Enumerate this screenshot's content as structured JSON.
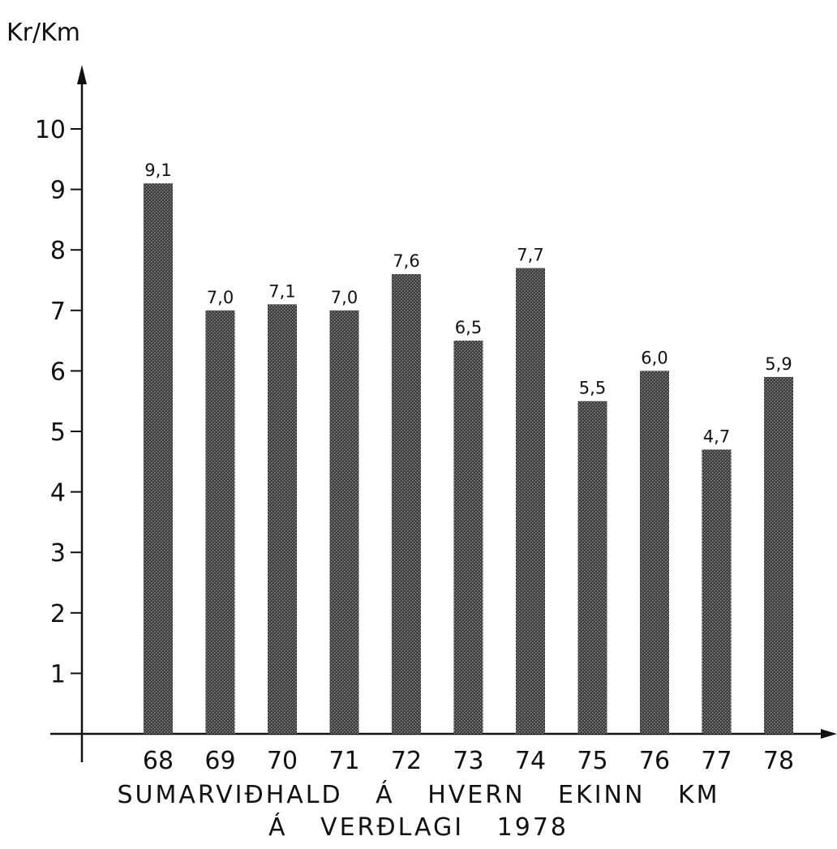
{
  "chart_data": {
    "type": "bar",
    "unit_label": "Kr/Km",
    "categories": [
      "68",
      "69",
      "70",
      "71",
      "72",
      "73",
      "74",
      "75",
      "76",
      "77",
      "78"
    ],
    "values": [
      9.1,
      7.0,
      7.1,
      7.0,
      7.6,
      6.5,
      7.7,
      5.5,
      6.0,
      4.7,
      5.9
    ],
    "value_labels": [
      "9,1",
      "7,0",
      "7,1",
      "7,0",
      "7,6",
      "6,5",
      "7,7",
      "5,5",
      "6,0",
      "4,7",
      "5,9"
    ],
    "yticks": [
      "1",
      "2",
      "3",
      "4",
      "5",
      "6",
      "7",
      "8",
      "9",
      "10"
    ],
    "ylim": [
      0,
      10
    ],
    "caption_line1": "SUMARVIÐHALD Á HVERN EKINN KM",
    "caption_line2": "Á VERÐLAGI 1978",
    "grid": false,
    "bar_color": "#3a3a3a"
  }
}
